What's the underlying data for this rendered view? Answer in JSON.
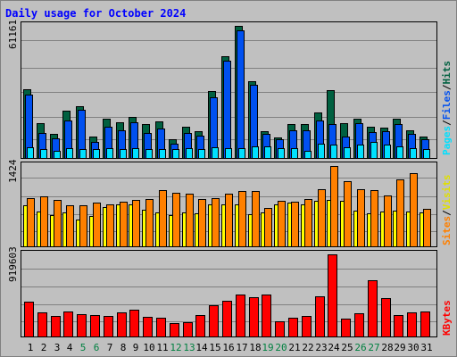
{
  "title": "Daily usage for October 2024",
  "colors": {
    "background": "#c0c0c0",
    "title": "#0000ff",
    "weekday_label": "#000000",
    "weekend_label": "#008040",
    "grid": "#808080",
    "hits": "#006040",
    "files": "#0050f0",
    "pages": "#00e0ff",
    "visits": "#ffff00",
    "sites": "#ff8000",
    "kbytes": "#ff0000"
  },
  "panels": {
    "hits": {
      "max_label": "61161",
      "legend": [
        "Pages",
        "/",
        "Files",
        "/",
        "Hits"
      ]
    },
    "visits": {
      "max_label": "1424",
      "legend": [
        "Sites",
        "/",
        "Visits"
      ]
    },
    "kbytes": {
      "max_label": "919603",
      "legend": [
        "KBytes"
      ]
    }
  },
  "chart_data": {
    "type": "bar",
    "title": "Daily usage for October 2024",
    "categories": [
      "1",
      "2",
      "3",
      "4",
      "5",
      "6",
      "7",
      "8",
      "9",
      "10",
      "11",
      "12",
      "13",
      "14",
      "15",
      "16",
      "17",
      "18",
      "19",
      "20",
      "21",
      "22",
      "23",
      "24",
      "25",
      "26",
      "27",
      "28",
      "29",
      "30",
      "31"
    ],
    "weekend_days": [
      "5",
      "6",
      "12",
      "13",
      "19",
      "20",
      "26",
      "27"
    ],
    "charts": [
      {
        "name": "hits-files-pages",
        "ylim": [
          0,
          61161
        ],
        "series": [
          {
            "name": "Hits",
            "values": [
              32000,
              16000,
              11000,
              22000,
              24000,
              10000,
              18000,
              16500,
              19000,
              15500,
              17000,
              8500,
              14500,
              12500,
              31000,
              47000,
              61161,
              35500,
              12500,
              9500,
              15500,
              15500,
              21000,
              31500,
              16000,
              18000,
              14500,
              14000,
              18000,
              13000,
              10000
            ]
          },
          {
            "name": "Files",
            "values": [
              29500,
              11500,
              9000,
              17500,
              22500,
              7500,
              14500,
              13000,
              16500,
              11500,
              13500,
              6500,
              11500,
              10500,
              28000,
              45000,
              59000,
              34000,
              11000,
              8500,
              13000,
              13000,
              17500,
              15500,
              10000,
              16000,
              12000,
              12500,
              15500,
              11000,
              8500
            ]
          },
          {
            "name": "Pages",
            "values": [
              5000,
              4000,
              3500,
              4500,
              4000,
              4000,
              4500,
              4000,
              4500,
              4000,
              4000,
              4000,
              4500,
              4000,
              5000,
              4500,
              4500,
              5500,
              5500,
              4500,
              4500,
              3500,
              6500,
              6000,
              5000,
              6000,
              7500,
              6000,
              5500,
              4500,
              4000
            ]
          }
        ]
      },
      {
        "name": "visits-sites",
        "ylim": [
          0,
          1424
        ],
        "series": [
          {
            "name": "Visits",
            "values": [
              725,
              620,
              560,
              600,
              480,
              540,
              700,
              740,
              745,
              650,
              595,
              560,
              600,
              580,
              740,
              745,
              740,
              570,
              595,
              745,
              770,
              745,
              800,
              830,
              800,
              640,
              590,
              620,
              625,
              610,
              600
            ]
          },
          {
            "name": "Sites",
            "values": [
              850,
              890,
              830,
              730,
              730,
              780,
              750,
              790,
              830,
              840,
              990,
              950,
              930,
              840,
              860,
              940,
              980,
              975,
              680,
              800,
              790,
              840,
              1020,
              1424,
              1160,
              1010,
              1000,
              900,
              1180,
              1290,
              660
            ]
          }
        ]
      },
      {
        "name": "kbytes",
        "ylim": [
          0,
          919603
        ],
        "series": [
          {
            "name": "KBytes",
            "values": [
              385000,
              270000,
              230000,
              280000,
              250000,
              240000,
              225000,
              265000,
              300000,
              215000,
              205000,
              145000,
              160000,
              240000,
              345000,
              395000,
              470000,
              440000,
              465000,
              170000,
              210000,
              225000,
              450000,
              919603,
              200000,
              260000,
              630000,
              430000,
              240000,
              265000,
              275000
            ]
          }
        ]
      }
    ]
  }
}
